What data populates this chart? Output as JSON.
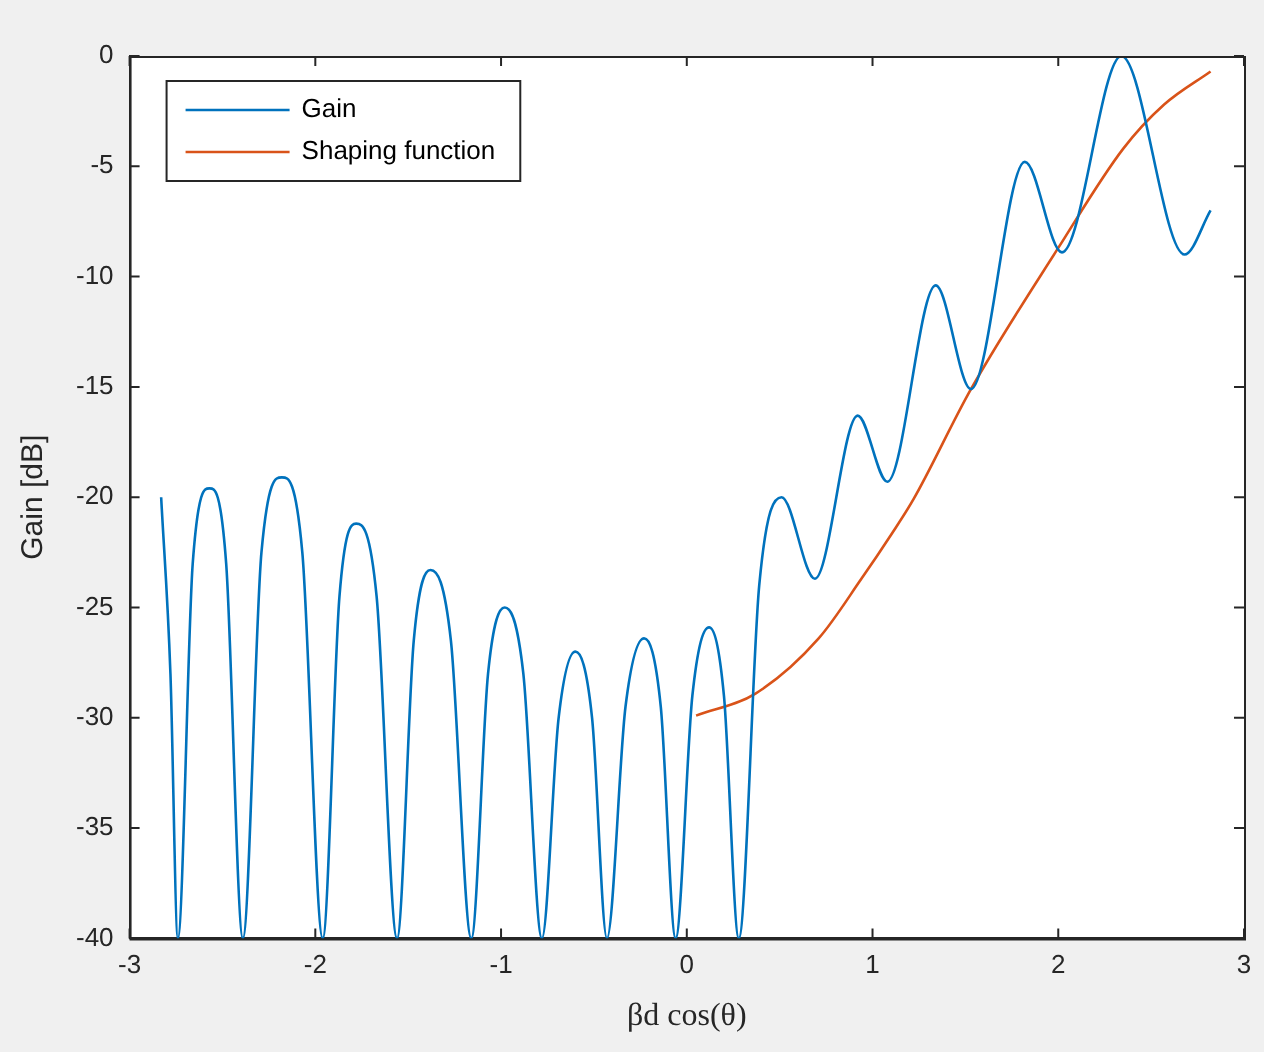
{
  "chart_data": {
    "type": "line",
    "xlabel": "βd cos(θ)",
    "ylabel": "Gain [dB]",
    "xlim": [
      -3,
      3
    ],
    "ylim": [
      -40,
      0
    ],
    "xticks": [
      -3,
      -2,
      -1,
      0,
      1,
      2,
      3
    ],
    "yticks": [
      -40,
      -35,
      -30,
      -25,
      -20,
      -15,
      -10,
      -5,
      0
    ],
    "grid": false,
    "legend": "top left",
    "marker": "none",
    "line_style": "solid",
    "series": [
      {
        "name": "Gain",
        "color": "#0072bd",
        "x": [
          -2.83,
          -2.78,
          -2.74,
          -2.66,
          -2.57,
          -2.48,
          -2.39,
          -2.29,
          -2.18,
          -2.07,
          -1.96,
          -1.87,
          -1.78,
          -1.67,
          -1.56,
          -1.47,
          -1.38,
          -1.27,
          -1.16,
          -1.07,
          -0.98,
          -0.88,
          -0.78,
          -0.69,
          -0.6,
          -0.51,
          -0.43,
          -0.33,
          -0.23,
          -0.14,
          -0.06,
          0.03,
          0.12,
          0.2,
          0.28,
          0.39,
          0.51,
          0.69,
          0.92,
          1.08,
          1.34,
          1.53,
          1.82,
          2.02,
          2.34,
          2.68,
          2.82
        ],
        "values": [
          -20,
          -28,
          -40,
          -23,
          -19.6,
          -23,
          -40,
          -22.5,
          -19.1,
          -22.5,
          -40,
          -24.5,
          -21.2,
          -24.5,
          -40,
          -26.5,
          -23.3,
          -26.5,
          -40,
          -28,
          -25,
          -28,
          -40,
          -30,
          -27,
          -30,
          -40,
          -29.5,
          -26.4,
          -29.5,
          -40,
          -29,
          -25.9,
          -29,
          -40,
          -24,
          -20,
          -23.7,
          -16.3,
          -19.3,
          -10.4,
          -15.1,
          -4.8,
          -8.9,
          0,
          -9,
          -7
        ]
      },
      {
        "name": "Shaping function",
        "color": "#d95319",
        "x": [
          0.05,
          0.37,
          0.71,
          0.94,
          1.1,
          1.22,
          1.53,
          2.0,
          2.35,
          2.57,
          2.82
        ],
        "values": [
          -29.9,
          -28.9,
          -26.4,
          -23.7,
          -21.7,
          -20.1,
          -15.1,
          -8.7,
          -4.2,
          -2.2,
          -0.7
        ]
      }
    ]
  }
}
